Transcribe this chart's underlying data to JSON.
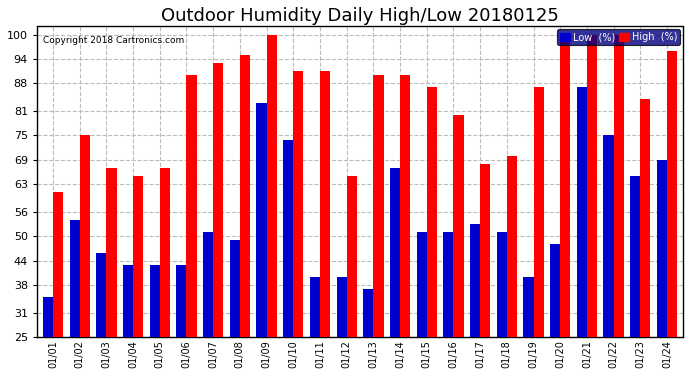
{
  "title": "Outdoor Humidity Daily High/Low 20180125",
  "copyright": "Copyright 2018 Cartronics.com",
  "categories": [
    "01/01",
    "01/02",
    "01/03",
    "01/04",
    "01/05",
    "01/06",
    "01/07",
    "01/08",
    "01/09",
    "01/10",
    "01/11",
    "01/12",
    "01/13",
    "01/14",
    "01/15",
    "01/16",
    "01/17",
    "01/18",
    "01/19",
    "01/20",
    "01/21",
    "01/22",
    "01/23",
    "01/24"
  ],
  "high_values": [
    61,
    75,
    67,
    65,
    67,
    90,
    93,
    95,
    100,
    91,
    91,
    65,
    90,
    90,
    87,
    80,
    68,
    70,
    87,
    100,
    100,
    100,
    84,
    96
  ],
  "low_values": [
    35,
    54,
    46,
    43,
    43,
    43,
    51,
    49,
    83,
    74,
    40,
    40,
    37,
    67,
    51,
    51,
    53,
    51,
    40,
    48,
    87,
    75,
    65,
    69
  ],
  "high_color": "#ff0000",
  "low_color": "#0000cc",
  "bg_color": "#ffffff",
  "plot_bg_color": "#ffffff",
  "grid_color": "#bbbbbb",
  "yticks": [
    25,
    31,
    38,
    44,
    50,
    56,
    63,
    69,
    75,
    81,
    88,
    94,
    100
  ],
  "ymin": 25,
  "ymax": 102,
  "bar_width": 0.38,
  "title_fontsize": 13,
  "legend_low_label": "Low  (%)",
  "legend_high_label": "High  (%)"
}
